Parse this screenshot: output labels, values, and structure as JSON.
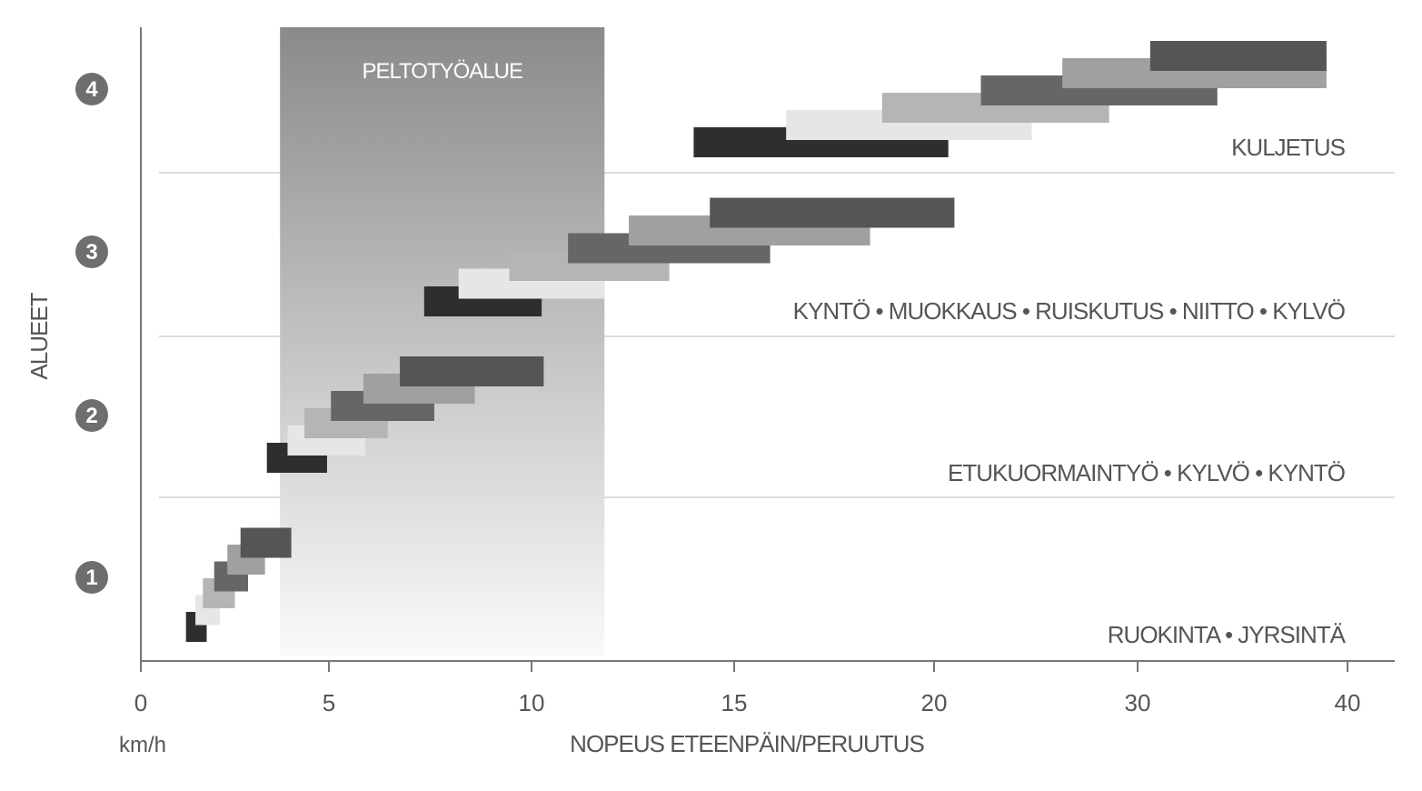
{
  "chart_data": {
    "type": "bar",
    "title": "",
    "xlabel": "NOPEUS ETEENPÄIN/PERUUTUS",
    "x_unit": "km/h",
    "ylabel": "ALUEET",
    "x_ticks": [
      0,
      5,
      10,
      15,
      20,
      30,
      40
    ],
    "field_zone": {
      "label": "PELTOTYÖALUE",
      "from": 3.7,
      "to": 11.8
    },
    "zones": [
      {
        "id": 1,
        "label": "1",
        "activities": "RUOKINTA • JYRSINTÄ"
      },
      {
        "id": 2,
        "label": "2",
        "activities": "ETUKUORMAINTYÖ • KYLVÖ • KYNTÖ"
      },
      {
        "id": 3,
        "label": "3",
        "activities": "KYNTÖ • MUOKKAUS • RUISKUTUS • NIITTO • KYLVÖ"
      },
      {
        "id": 4,
        "label": "4",
        "activities": "KULJETUS"
      }
    ],
    "gear_bars": [
      {
        "zone": 1,
        "gear": 1,
        "from": 1.2,
        "to": 1.75,
        "color": "#2e2e2e"
      },
      {
        "zone": 1,
        "gear": 2,
        "from": 1.45,
        "to": 2.1,
        "color": "#e6e6e6"
      },
      {
        "zone": 1,
        "gear": 3,
        "from": 1.65,
        "to": 2.5,
        "color": "#b5b5b5"
      },
      {
        "zone": 1,
        "gear": 4,
        "from": 1.95,
        "to": 2.85,
        "color": "#666666"
      },
      {
        "zone": 1,
        "gear": 5,
        "from": 2.3,
        "to": 3.3,
        "color": "#a0a0a0"
      },
      {
        "zone": 1,
        "gear": 6,
        "from": 2.65,
        "to": 4.0,
        "color": "#555555"
      },
      {
        "zone": 2,
        "gear": 1,
        "from": 3.35,
        "to": 4.95,
        "color": "#2e2e2e"
      },
      {
        "zone": 2,
        "gear": 2,
        "from": 3.9,
        "to": 5.9,
        "color": "#e6e6e6"
      },
      {
        "zone": 2,
        "gear": 3,
        "from": 4.35,
        "to": 6.45,
        "color": "#b5b5b5"
      },
      {
        "zone": 2,
        "gear": 4,
        "from": 5.05,
        "to": 7.6,
        "color": "#666666"
      },
      {
        "zone": 2,
        "gear": 5,
        "from": 5.85,
        "to": 8.6,
        "color": "#a0a0a0"
      },
      {
        "zone": 2,
        "gear": 6,
        "from": 6.75,
        "to": 10.3,
        "color": "#555555"
      },
      {
        "zone": 3,
        "gear": 1,
        "from": 7.35,
        "to": 10.25,
        "color": "#2e2e2e"
      },
      {
        "zone": 3,
        "gear": 2,
        "from": 8.2,
        "to": 11.8,
        "color": "#e6e6e6"
      },
      {
        "zone": 3,
        "gear": 3,
        "from": 9.45,
        "to": 13.4,
        "color": "#b5b5b5"
      },
      {
        "zone": 3,
        "gear": 4,
        "from": 10.9,
        "to": 15.9,
        "color": "#666666"
      },
      {
        "zone": 3,
        "gear": 5,
        "from": 12.4,
        "to": 18.4,
        "color": "#a0a0a0"
      },
      {
        "zone": 3,
        "gear": 6,
        "from": 14.4,
        "to": 21.0,
        "color": "#555555"
      },
      {
        "zone": 4,
        "gear": 1,
        "from": 14.0,
        "to": 20.7,
        "color": "#2e2e2e"
      },
      {
        "zone": 4,
        "gear": 2,
        "from": 16.3,
        "to": 24.8,
        "color": "#e6e6e6"
      },
      {
        "zone": 4,
        "gear": 3,
        "from": 18.7,
        "to": 28.6,
        "color": "#b5b5b5"
      },
      {
        "zone": 4,
        "gear": 4,
        "from": 22.3,
        "to": 33.8,
        "color": "#666666"
      },
      {
        "zone": 4,
        "gear": 5,
        "from": 26.3,
        "to": 39.0,
        "color": "#a0a0a0"
      },
      {
        "zone": 4,
        "gear": 6,
        "from": 30.6,
        "to": 39.0,
        "color": "#555555"
      }
    ],
    "grid": {
      "horizontal_separators": true
    }
  }
}
